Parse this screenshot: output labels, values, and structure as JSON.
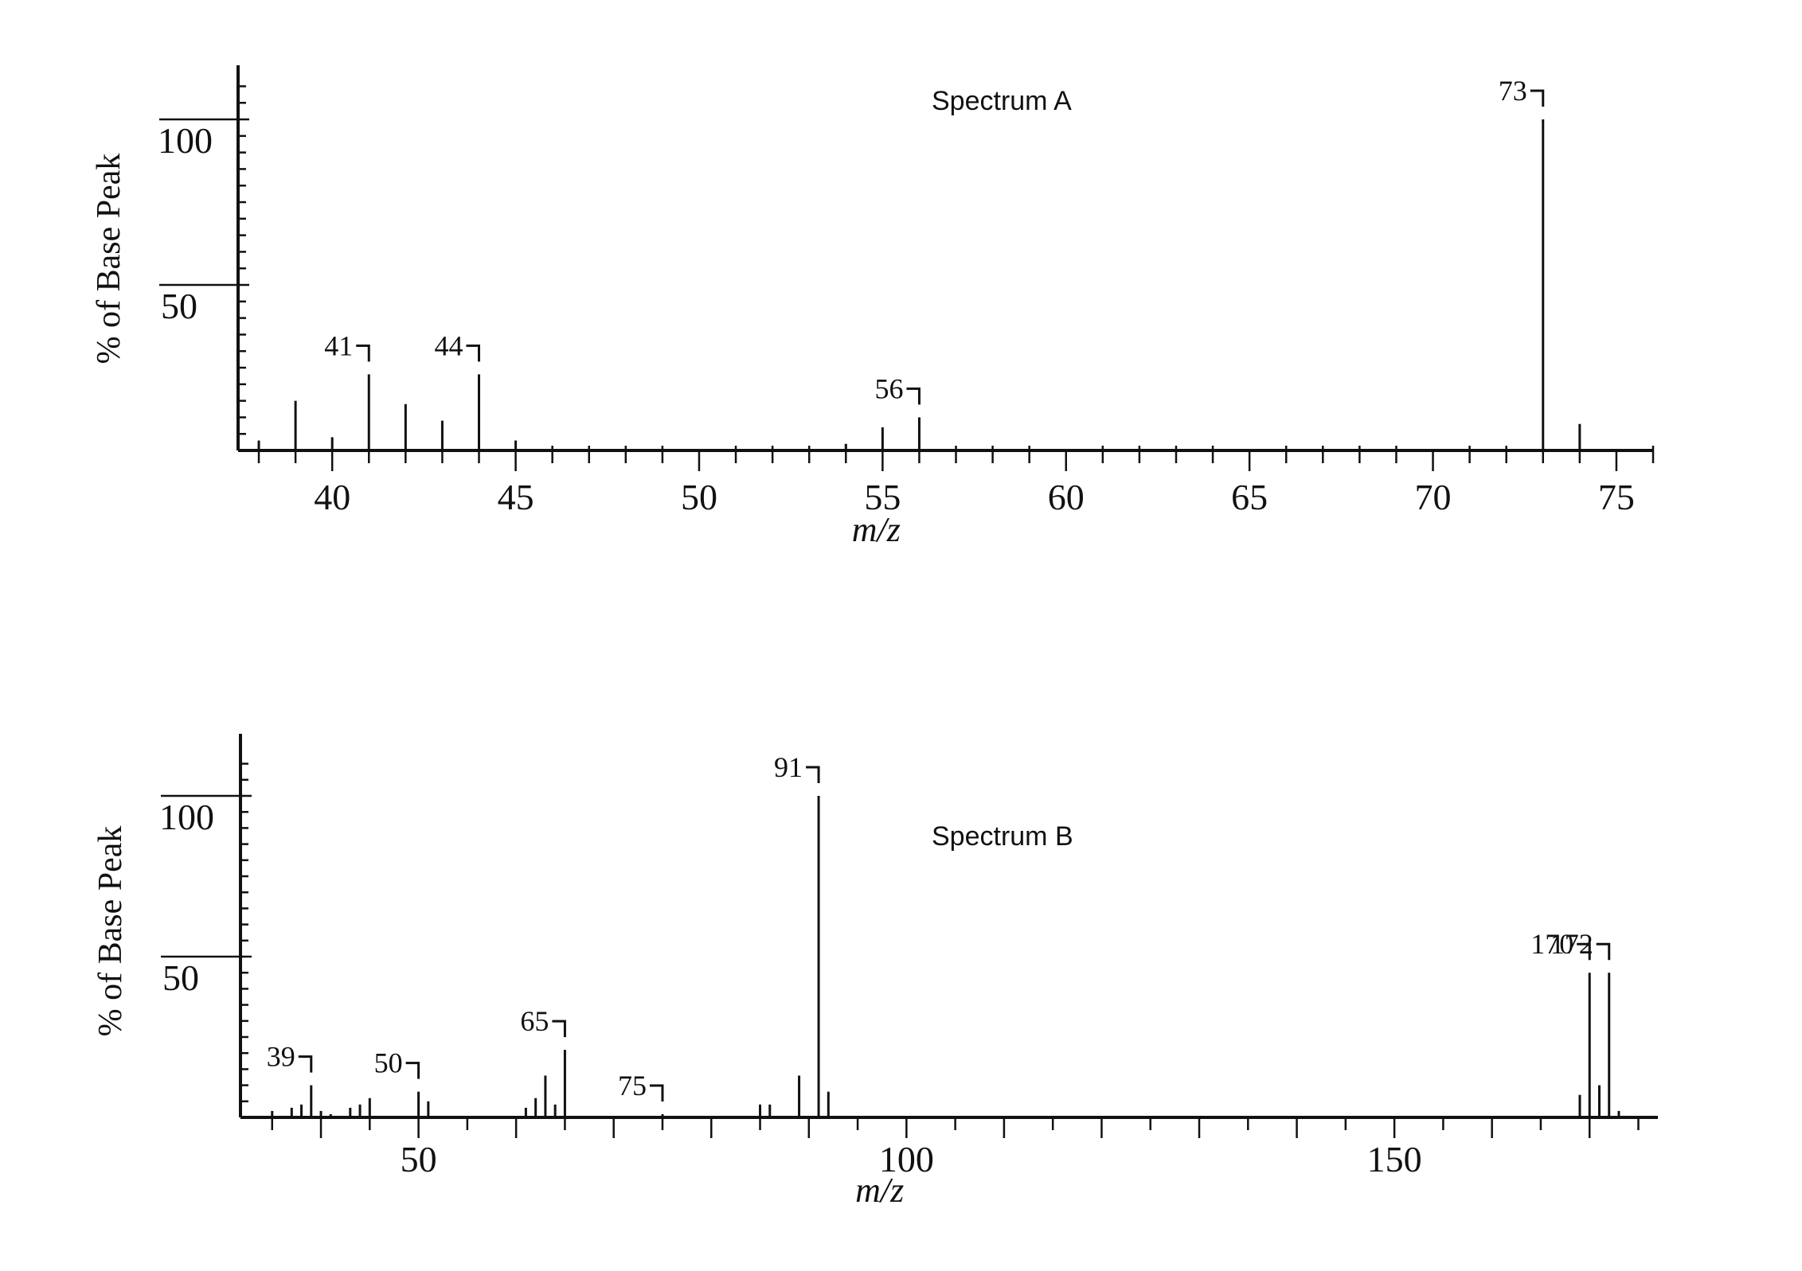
{
  "chart_data": [
    {
      "type": "bar",
      "title": "Spectrum A",
      "xlabel": "m/z",
      "ylabel": "% of Base Peak",
      "xlim": [
        37.5,
        76
      ],
      "ylim": [
        0,
        115
      ],
      "x_ticks": [
        "40",
        "45",
        "50",
        "55",
        "60",
        "65",
        "70",
        "75"
      ],
      "y_ticks": [
        "50",
        "100"
      ],
      "x": [
        38,
        39,
        40,
        41,
        42,
        43,
        44,
        45,
        54,
        55,
        56,
        73,
        74
      ],
      "values": [
        3,
        15,
        4,
        23,
        14,
        9,
        23,
        3,
        2,
        7,
        10,
        100,
        8
      ],
      "peak_labels": [
        {
          "mz": 41,
          "text": "41"
        },
        {
          "mz": 44,
          "text": "44"
        },
        {
          "mz": 56,
          "text": "56"
        },
        {
          "mz": 73,
          "text": "73"
        }
      ]
    },
    {
      "type": "bar",
      "title": "Spectrum B",
      "xlabel": "m/z",
      "ylabel": "% of Base Peak",
      "xlim": [
        32,
        177
      ],
      "ylim": [
        0,
        115
      ],
      "x_ticks": [
        "50",
        "100",
        "150"
      ],
      "y_ticks": [
        "50",
        "100"
      ],
      "x": [
        35,
        37,
        38,
        39,
        40,
        41,
        43,
        44,
        45,
        50,
        51,
        61,
        62,
        63,
        64,
        65,
        75,
        85,
        86,
        89,
        91,
        92,
        169,
        170,
        171,
        172,
        173
      ],
      "values": [
        2,
        3,
        4,
        10,
        2,
        1,
        3,
        4,
        6,
        8,
        5,
        3,
        6,
        13,
        4,
        21,
        1,
        4,
        4,
        13,
        100,
        8,
        7,
        45,
        10,
        45,
        2
      ],
      "peak_labels": [
        {
          "mz": 39,
          "text": "39"
        },
        {
          "mz": 50,
          "text": "50"
        },
        {
          "mz": 65,
          "text": "65"
        },
        {
          "mz": 75,
          "text": "75"
        },
        {
          "mz": 91,
          "text": "91"
        },
        {
          "mz": 170,
          "text": "170"
        },
        {
          "mz": 172,
          "text": "172"
        }
      ]
    }
  ]
}
